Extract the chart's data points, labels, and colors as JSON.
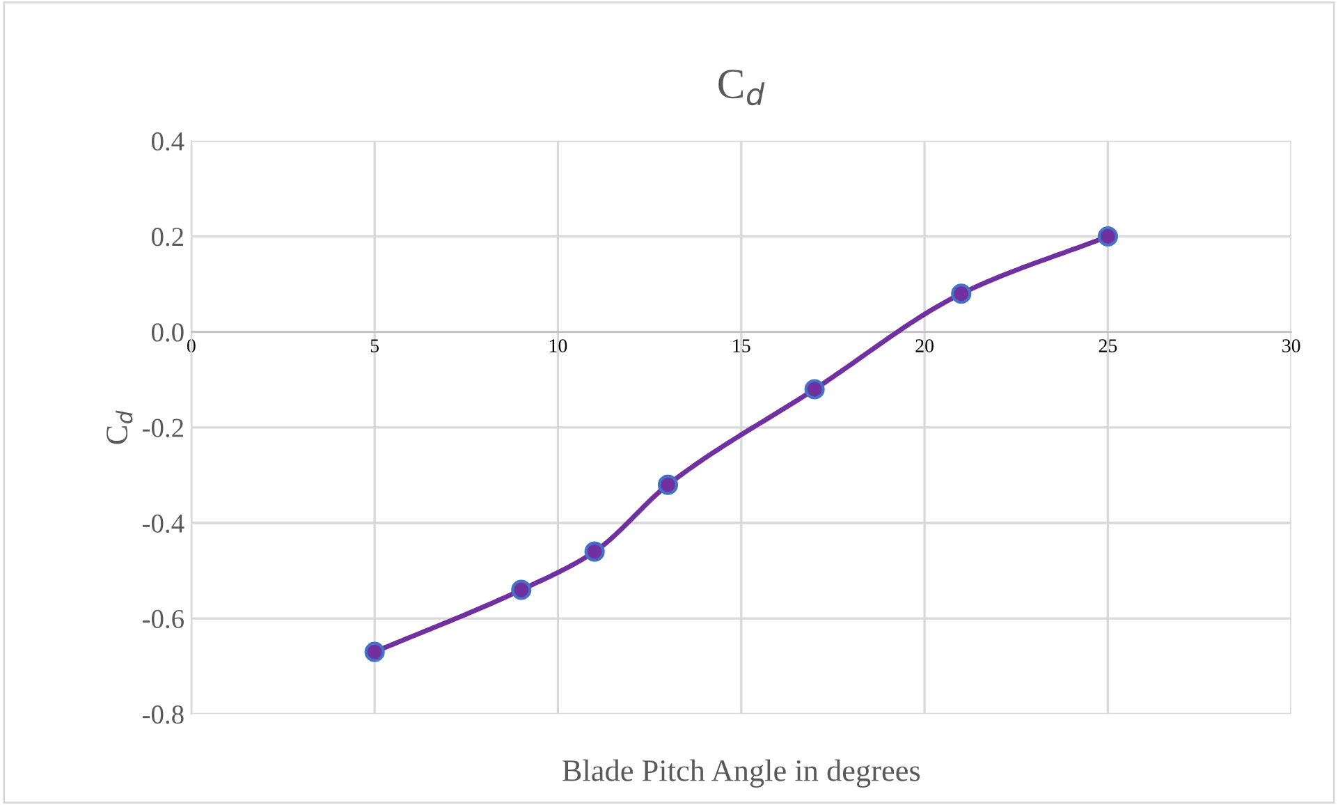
{
  "chart_data": {
    "type": "line",
    "title": "C$_{d}$",
    "xlabel": "Blade Pitch Angle in degrees",
    "ylabel": "C$_{d}$",
    "x": [
      5,
      9,
      11,
      13,
      17,
      21,
      25
    ],
    "series": [
      {
        "color": "#7030a0",
        "values": [
          -0.67,
          -0.54,
          -0.46,
          -0.32,
          -0.12,
          0.08,
          0.2
        ]
      }
    ],
    "xlim": [
      0,
      30
    ],
    "xticks": [
      0,
      5,
      10,
      15,
      20,
      25,
      30
    ],
    "ylim": [
      -0.8,
      0.4
    ],
    "yticks": [
      {
        "value": -0.8,
        "label": "-0.8"
      },
      {
        "value": -0.6,
        "label": "-0.6"
      },
      {
        "value": -0.4,
        "label": "-0.4"
      },
      {
        "value": -0.2,
        "label": "-0.2"
      },
      {
        "value": 0.0,
        "label": "0.0"
      },
      {
        "value": 0.2,
        "label": "0.2"
      },
      {
        "value": 0.4,
        "label": "0.4"
      }
    ],
    "grid": true,
    "marker": "circle",
    "line_style": "solid"
  }
}
